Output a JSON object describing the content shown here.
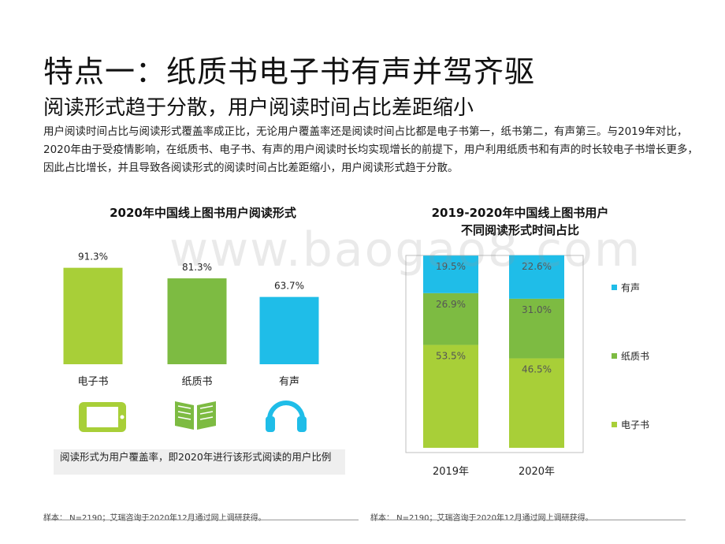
{
  "title": "特点一：纸质书电子书有声并驾齐驱",
  "subtitle": "阅读形式趋于分散，用户阅读时间占比差距缩小",
  "description": "用户阅读时间占比与阅读形式覆盖率成正比，无论用户覆盖率还是阅读时间占比都是电子书第一，纸书第二，有声第三。与2019年对比，2020年由于受疫情影响，在纸质书、电子书、有声的用户阅读时长均实现增长的前提下，用户利用纸质书和有声的时长较电子书增长更多，因此占比增长，并且导致各阅读形式的阅读时间占比差距缩小，用户阅读形式趋于分散。",
  "watermark": "www.baogao8.com",
  "note": "阅读形式为用户覆盖率，即2020年进行该形式阅读的用户比例",
  "footer_left": "样本： N=2190；艾瑞咨询于2020年12月通过网上调研获得。",
  "footer_right": "样本： N=2190；艾瑞咨询于2020年12月通过网上调研获得。",
  "icons": [
    "tablet-icon",
    "book-icon",
    "headphones-icon"
  ],
  "colors": {
    "ebook": "#a8cf38",
    "paper": "#7dbb42",
    "audio": "#1fbde8",
    "bar_label": "#555555"
  },
  "chart_data": [
    {
      "type": "bar",
      "title": "2020年中国线上图书用户阅读形式",
      "categories": [
        "电子书",
        "纸质书",
        "有声"
      ],
      "values": [
        91.3,
        81.3,
        63.7
      ],
      "value_labels": [
        "91.3%",
        "81.3%",
        "63.7%"
      ],
      "unit": "%",
      "ylim": [
        0,
        100
      ],
      "grid": false
    },
    {
      "type": "bar",
      "stacked": true,
      "title_lines": [
        "2019-2020年中国线上图书用户",
        "不同阅读形式时间占比"
      ],
      "categories": [
        "2019年",
        "2020年"
      ],
      "series": [
        {
          "name": "电子书",
          "values": [
            53.5,
            46.5
          ],
          "labels": [
            "53.5%",
            "46.5%"
          ]
        },
        {
          "name": "纸质书",
          "values": [
            26.9,
            31.0
          ],
          "labels": [
            "26.9%",
            "31.0%"
          ]
        },
        {
          "name": "有声",
          "values": [
            19.5,
            22.6
          ],
          "labels": [
            "19.5%",
            "22.6%"
          ]
        }
      ],
      "unit": "%",
      "legend": "right",
      "grid": false
    }
  ]
}
